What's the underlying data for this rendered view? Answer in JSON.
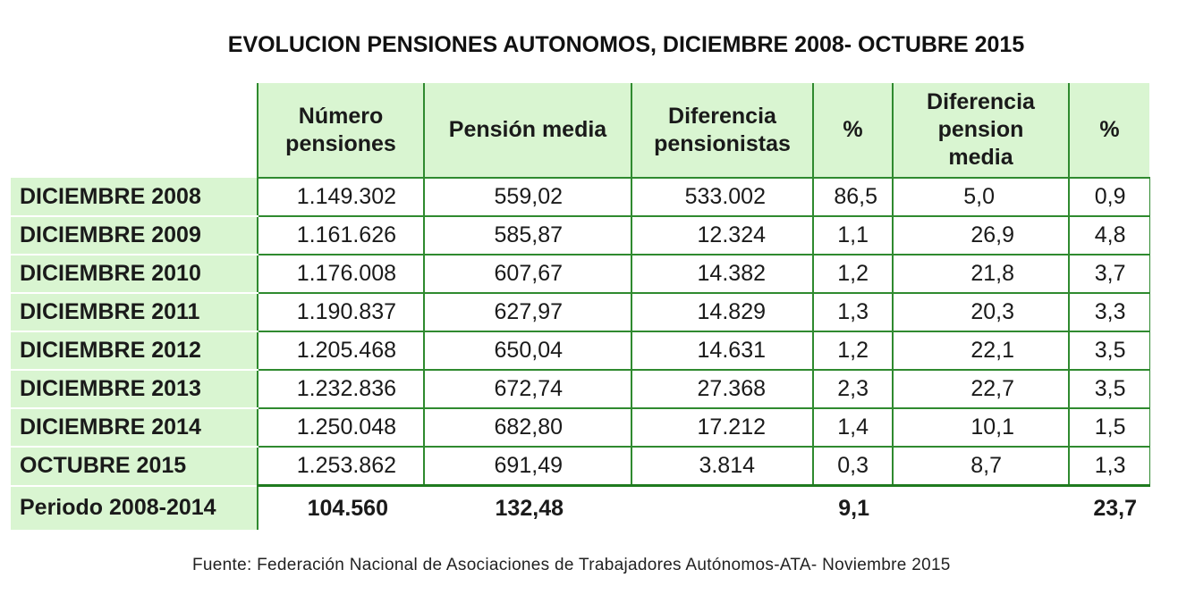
{
  "title": "EVOLUCION PENSIONES AUTONOMOS, DICIEMBRE 2008- OCTUBRE 2015",
  "headers": [
    [
      "Número",
      "pensiones"
    ],
    [
      "Pensión media"
    ],
    [
      "Diferencia",
      "pensionistas"
    ],
    [
      "%"
    ],
    [
      "Diferencia",
      "pension",
      "media"
    ],
    [
      "%"
    ]
  ],
  "rows": [
    {
      "label": "DICIEMBRE 2008",
      "values": [
        "1.149.302",
        "559,02",
        "533.002",
        "86,5",
        "5,0",
        "0,9"
      ]
    },
    {
      "label": "DICIEMBRE 2009",
      "values": [
        "1.161.626",
        "585,87",
        "12.324",
        "1,1",
        "26,9",
        "4,8"
      ]
    },
    {
      "label": "DICIEMBRE 2010",
      "values": [
        "1.176.008",
        "607,67",
        "14.382",
        "1,2",
        "21,8",
        "3,7"
      ]
    },
    {
      "label": "DICIEMBRE 2011",
      "values": [
        "1.190.837",
        "627,97",
        "14.829",
        "1,3",
        "20,3",
        "3,3"
      ]
    },
    {
      "label": "DICIEMBRE 2012",
      "values": [
        "1.205.468",
        "650,04",
        "14.631",
        "1,2",
        "22,1",
        "3,5"
      ]
    },
    {
      "label": "DICIEMBRE 2013",
      "values": [
        "1.232.836",
        "672,74",
        "27.368",
        "2,3",
        "22,7",
        "3,5"
      ]
    },
    {
      "label": "DICIEMBRE 2014",
      "values": [
        "1.250.048",
        "682,80",
        "17.212",
        "1,4",
        "10,1",
        "1,5"
      ]
    },
    {
      "label": "OCTUBRE 2015",
      "values": [
        "1.253.862",
        "691,49",
        "3.814",
        "0,3",
        "8,7",
        "1,3"
      ]
    }
  ],
  "total": {
    "label": "Periodo 2008-2014",
    "values": [
      "104.560",
      "132,48",
      "",
      "9,1",
      "",
      "23,7"
    ]
  },
  "source": "Fuente: Federación Nacional de Asociaciones de Trabajadores Autónomos-ATA- Noviembre 2015"
}
